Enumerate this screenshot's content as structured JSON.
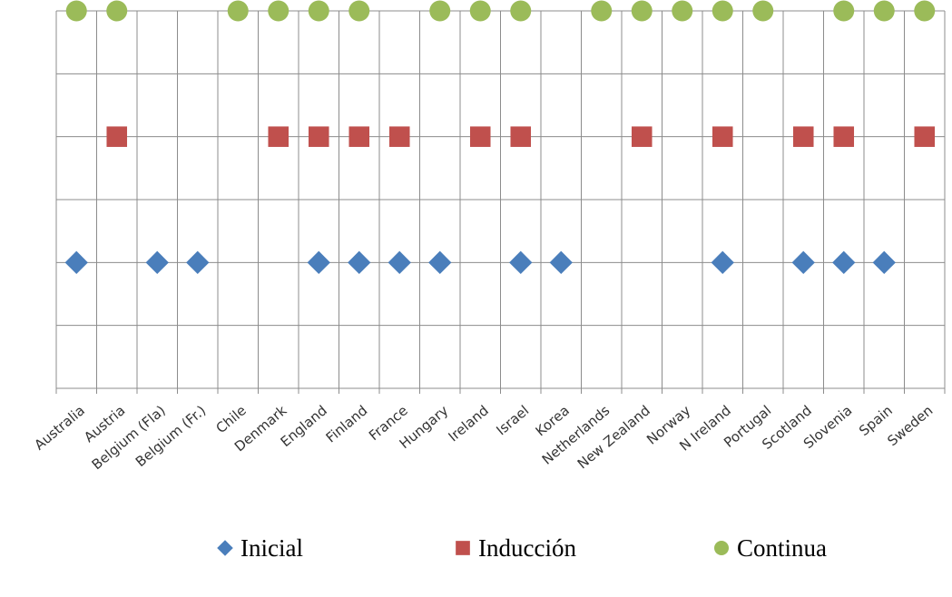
{
  "chart_data": {
    "type": "scatter",
    "categories": [
      "Australia",
      "Austria",
      "Belgium (Fla)",
      "Belgium (Fr.)",
      "Chile",
      "Denmark",
      "England",
      "Finland",
      "France",
      "Hungary",
      "Ireland",
      "Israel",
      "Korea",
      "Netherlands",
      "New Zealand",
      "Norway",
      "N Ireland",
      "Portugal",
      "Scotland",
      "Slovenia",
      "Spain",
      "Sweden"
    ],
    "ylim": [
      0,
      6
    ],
    "grid": true,
    "legend_position": "bottom",
    "series": [
      {
        "name": "Inicial",
        "marker": "diamond",
        "color": "#4a7ebb",
        "level": 2,
        "present": [
          1,
          0,
          1,
          1,
          0,
          0,
          1,
          1,
          1,
          1,
          0,
          1,
          1,
          0,
          0,
          0,
          1,
          0,
          1,
          1,
          1,
          0
        ]
      },
      {
        "name": "Inducción",
        "marker": "square",
        "color": "#c0504d",
        "level": 4,
        "present": [
          0,
          1,
          0,
          0,
          0,
          1,
          1,
          1,
          1,
          0,
          1,
          1,
          0,
          0,
          1,
          0,
          1,
          0,
          1,
          1,
          0,
          1
        ]
      },
      {
        "name": "Continua",
        "marker": "circle",
        "color": "#9bbb59",
        "level": 6,
        "present": [
          1,
          1,
          0,
          0,
          1,
          1,
          1,
          1,
          0,
          1,
          1,
          1,
          0,
          1,
          1,
          1,
          1,
          1,
          0,
          1,
          1,
          1
        ]
      }
    ]
  }
}
